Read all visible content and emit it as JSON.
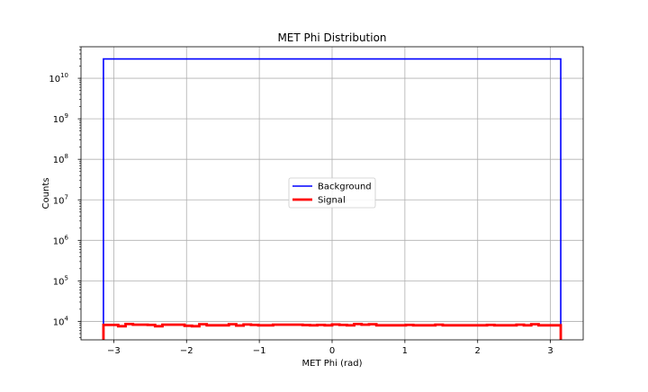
{
  "chart_data": {
    "type": "histogram-step",
    "title": "MET Phi Distribution",
    "xlabel": "MET Phi (rad)",
    "ylabel": "Counts",
    "xlim": [
      -3.45,
      3.45
    ],
    "ylim": [
      3500,
      60000000000
    ],
    "yscale": "log",
    "grid": true,
    "legend_position": "center",
    "x_ticks": [
      -3,
      -2,
      -1,
      0,
      1,
      2,
      3
    ],
    "x_tick_labels": [
      "−3",
      "−2",
      "−1",
      "0",
      "1",
      "2",
      "3"
    ],
    "y_ticks": [
      10000,
      100000,
      1000000,
      10000000,
      100000000,
      1000000000,
      10000000000
    ],
    "y_tick_exponents": [
      "4",
      "5",
      "6",
      "7",
      "8",
      "9",
      "10"
    ],
    "y_tick_base": "10",
    "bin_range": [
      -3.1416,
      3.1416
    ],
    "series": [
      {
        "name": "Background",
        "color": "#0000ff",
        "values": [
          30000000000
        ]
      },
      {
        "name": "Signal",
        "color": "#ff0000",
        "values": [
          8200,
          8200,
          7600,
          8600,
          8300,
          8300,
          8200,
          7600,
          8300,
          8300,
          8300,
          7800,
          7600,
          8500,
          8000,
          8000,
          8000,
          8500,
          7900,
          8400,
          8200,
          8000,
          8000,
          8300,
          8300,
          8300,
          8300,
          8100,
          8000,
          8200,
          8000,
          8400,
          8200,
          8000,
          8600,
          8300,
          8500,
          8000,
          8000,
          8000,
          8000,
          8200,
          8000,
          8000,
          8000,
          8300,
          8000,
          8000,
          8000,
          8000,
          8000,
          8000,
          8200,
          8000,
          8000,
          8000,
          8300,
          8000,
          8500,
          8000,
          8000,
          8000
        ]
      }
    ]
  }
}
